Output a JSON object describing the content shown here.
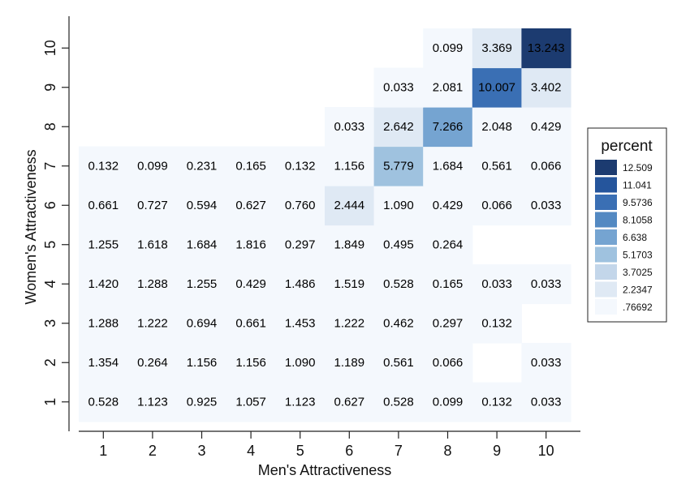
{
  "chart_data": {
    "type": "heatmap",
    "xlabel": "Men's Attractiveness",
    "ylabel": "Women's Attractiveness",
    "x": [
      "1",
      "2",
      "3",
      "4",
      "5",
      "6",
      "7",
      "8",
      "9",
      "10"
    ],
    "y": [
      "1",
      "2",
      "3",
      "4",
      "5",
      "6",
      "7",
      "8",
      "9",
      "10"
    ],
    "cells": [
      {
        "x": 1,
        "y": 1,
        "value": "0.528"
      },
      {
        "x": 2,
        "y": 1,
        "value": "1.123"
      },
      {
        "x": 3,
        "y": 1,
        "value": "0.925"
      },
      {
        "x": 4,
        "y": 1,
        "value": "1.057"
      },
      {
        "x": 5,
        "y": 1,
        "value": "1.123"
      },
      {
        "x": 6,
        "y": 1,
        "value": "0.627"
      },
      {
        "x": 7,
        "y": 1,
        "value": "0.528"
      },
      {
        "x": 8,
        "y": 1,
        "value": "0.099"
      },
      {
        "x": 9,
        "y": 1,
        "value": "0.132"
      },
      {
        "x": 10,
        "y": 1,
        "value": "0.033"
      },
      {
        "x": 1,
        "y": 2,
        "value": "1.354"
      },
      {
        "x": 2,
        "y": 2,
        "value": "0.264"
      },
      {
        "x": 3,
        "y": 2,
        "value": "1.156"
      },
      {
        "x": 4,
        "y": 2,
        "value": "1.156"
      },
      {
        "x": 5,
        "y": 2,
        "value": "1.090"
      },
      {
        "x": 6,
        "y": 2,
        "value": "1.189"
      },
      {
        "x": 7,
        "y": 2,
        "value": "0.561"
      },
      {
        "x": 8,
        "y": 2,
        "value": "0.066"
      },
      {
        "x": 10,
        "y": 2,
        "value": "0.033"
      },
      {
        "x": 1,
        "y": 3,
        "value": "1.288"
      },
      {
        "x": 2,
        "y": 3,
        "value": "1.222"
      },
      {
        "x": 3,
        "y": 3,
        "value": "0.694"
      },
      {
        "x": 4,
        "y": 3,
        "value": "0.661"
      },
      {
        "x": 5,
        "y": 3,
        "value": "1.453"
      },
      {
        "x": 6,
        "y": 3,
        "value": "1.222"
      },
      {
        "x": 7,
        "y": 3,
        "value": "0.462"
      },
      {
        "x": 8,
        "y": 3,
        "value": "0.297"
      },
      {
        "x": 9,
        "y": 3,
        "value": "0.132"
      },
      {
        "x": 1,
        "y": 4,
        "value": "1.420"
      },
      {
        "x": 2,
        "y": 4,
        "value": "1.288"
      },
      {
        "x": 3,
        "y": 4,
        "value": "1.255"
      },
      {
        "x": 4,
        "y": 4,
        "value": "0.429"
      },
      {
        "x": 5,
        "y": 4,
        "value": "1.486"
      },
      {
        "x": 6,
        "y": 4,
        "value": "1.519"
      },
      {
        "x": 7,
        "y": 4,
        "value": "0.528"
      },
      {
        "x": 8,
        "y": 4,
        "value": "0.165"
      },
      {
        "x": 9,
        "y": 4,
        "value": "0.033"
      },
      {
        "x": 10,
        "y": 4,
        "value": "0.033"
      },
      {
        "x": 1,
        "y": 5,
        "value": "1.255"
      },
      {
        "x": 2,
        "y": 5,
        "value": "1.618"
      },
      {
        "x": 3,
        "y": 5,
        "value": "1.684"
      },
      {
        "x": 4,
        "y": 5,
        "value": "1.816"
      },
      {
        "x": 5,
        "y": 5,
        "value": "0.297"
      },
      {
        "x": 6,
        "y": 5,
        "value": "1.849"
      },
      {
        "x": 7,
        "y": 5,
        "value": "0.495"
      },
      {
        "x": 8,
        "y": 5,
        "value": "0.264"
      },
      {
        "x": 1,
        "y": 6,
        "value": "0.661"
      },
      {
        "x": 2,
        "y": 6,
        "value": "0.727"
      },
      {
        "x": 3,
        "y": 6,
        "value": "0.594"
      },
      {
        "x": 4,
        "y": 6,
        "value": "0.627"
      },
      {
        "x": 5,
        "y": 6,
        "value": "0.760"
      },
      {
        "x": 6,
        "y": 6,
        "value": "2.444"
      },
      {
        "x": 7,
        "y": 6,
        "value": "1.090"
      },
      {
        "x": 8,
        "y": 6,
        "value": "0.429"
      },
      {
        "x": 9,
        "y": 6,
        "value": "0.066"
      },
      {
        "x": 10,
        "y": 6,
        "value": "0.033"
      },
      {
        "x": 1,
        "y": 7,
        "value": "0.132"
      },
      {
        "x": 2,
        "y": 7,
        "value": "0.099"
      },
      {
        "x": 3,
        "y": 7,
        "value": "0.231"
      },
      {
        "x": 4,
        "y": 7,
        "value": "0.165"
      },
      {
        "x": 5,
        "y": 7,
        "value": "0.132"
      },
      {
        "x": 6,
        "y": 7,
        "value": "1.156"
      },
      {
        "x": 7,
        "y": 7,
        "value": "5.779"
      },
      {
        "x": 8,
        "y": 7,
        "value": "1.684"
      },
      {
        "x": 9,
        "y": 7,
        "value": "0.561"
      },
      {
        "x": 10,
        "y": 7,
        "value": "0.066"
      },
      {
        "x": 6,
        "y": 8,
        "value": "0.033"
      },
      {
        "x": 7,
        "y": 8,
        "value": "2.642"
      },
      {
        "x": 8,
        "y": 8,
        "value": "7.266"
      },
      {
        "x": 9,
        "y": 8,
        "value": "2.048"
      },
      {
        "x": 10,
        "y": 8,
        "value": "0.429"
      },
      {
        "x": 7,
        "y": 9,
        "value": "0.033"
      },
      {
        "x": 8,
        "y": 9,
        "value": "2.081"
      },
      {
        "x": 9,
        "y": 9,
        "value": "10.007"
      },
      {
        "x": 10,
        "y": 9,
        "value": "3.402"
      },
      {
        "x": 8,
        "y": 10,
        "value": "0.099"
      },
      {
        "x": 9,
        "y": 10,
        "value": "3.369"
      },
      {
        "x": 10,
        "y": 10,
        "value": "13.243"
      }
    ],
    "legend": {
      "title": "percent",
      "position": "right",
      "breaks": [
        "12.509",
        "11.041",
        "9.5736",
        "8.1058",
        "6.638",
        "5.1703",
        "3.7025",
        "2.2347",
        ".76692"
      ],
      "colors": [
        "#1c3b70",
        "#25559c",
        "#3a6fb4",
        "#5389c2",
        "#75a4d1",
        "#9fc2df",
        "#c3d6ea",
        "#dfe9f4",
        "#f4f8fd"
      ]
    },
    "grid": false
  }
}
